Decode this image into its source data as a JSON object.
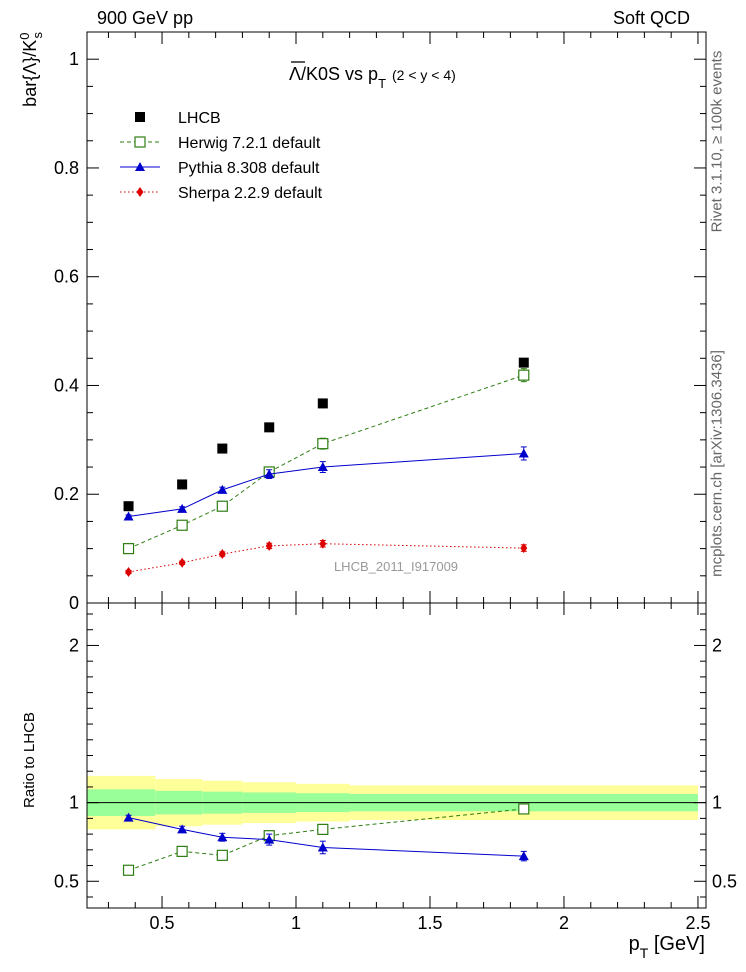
{
  "header": {
    "left": "900 GeV pp",
    "right": "Soft QCD"
  },
  "side": {
    "rivet": "Rivet 3.1.10, ≥ 100k events",
    "mcplots": "mcplots.cern.ch [arXiv:1306.3436]"
  },
  "title": {
    "main": "Λ/K0S vs p",
    "sub": "T",
    "range": "(2 < y < 4)"
  },
  "analysis_label": "LHCB_2011_I917009",
  "colors": {
    "herwig": "#2e7d12",
    "pythia": "#0000cc",
    "sherpa": "#dd0000",
    "data": "#000000",
    "band_inner": "#99ff99",
    "band_outer": "#ffff99"
  },
  "chart_data": [
    {
      "type": "scatter",
      "panel": "main",
      "title": "Λ/K0S vs pT (2 < y < 4)",
      "xlabel": "pT [GeV]",
      "ylabel": "bar{Λ}/K0s",
      "xlim": [
        0.22,
        2.53
      ],
      "ylim": [
        0,
        1.05
      ],
      "x_ticks": [
        0.5,
        1,
        1.5,
        2,
        2.5
      ],
      "y_ticks": [
        0,
        0.2,
        0.4,
        0.6,
        0.8,
        1
      ],
      "y_tick_labels": [
        "0",
        "0.2",
        "0.4",
        "0.6",
        "0.8",
        "1"
      ],
      "legend_position": "top-left",
      "series": [
        {
          "name": "LHCB",
          "style": "square-filled",
          "x": [
            0.375,
            0.575,
            0.725,
            0.9,
            1.1,
            1.85
          ],
          "values": [
            0.178,
            0.218,
            0.284,
            0.323,
            0.367,
            0.442
          ],
          "errors": [
            0.004,
            0.004,
            0.004,
            0.004,
            0.005,
            0.006
          ]
        },
        {
          "name": "Herwig 7.2.1 default",
          "style": "square-open-dashed",
          "x": [
            0.375,
            0.575,
            0.725,
            0.9,
            1.1,
            1.85
          ],
          "values": [
            0.1,
            0.143,
            0.178,
            0.241,
            0.293,
            0.419
          ],
          "errors": [
            0.004,
            0.004,
            0.005,
            0.007,
            0.01,
            0.012
          ]
        },
        {
          "name": "Pythia 8.308 default",
          "style": "triangle-solid",
          "x": [
            0.375,
            0.575,
            0.725,
            0.9,
            1.1,
            1.85
          ],
          "values": [
            0.159,
            0.173,
            0.208,
            0.237,
            0.25,
            0.275
          ],
          "errors": [
            0.003,
            0.004,
            0.005,
            0.008,
            0.01,
            0.012
          ]
        },
        {
          "name": "Sherpa 2.2.9 default",
          "style": "diamond-dotted",
          "x": [
            0.375,
            0.575,
            0.725,
            0.9,
            1.1,
            1.85
          ],
          "values": [
            0.057,
            0.074,
            0.09,
            0.105,
            0.109,
            0.101
          ],
          "errors": [
            0.003,
            0.003,
            0.004,
            0.005,
            0.006,
            0.006
          ]
        }
      ]
    },
    {
      "type": "scatter",
      "panel": "ratio",
      "xlabel": "pT [GeV]",
      "ylabel": "Ratio to LHCB",
      "xlim": [
        0.22,
        2.53
      ],
      "ylim": [
        0.33,
        2.27
      ],
      "x_ticks": [
        0.5,
        1,
        1.5,
        2,
        2.5
      ],
      "x_tick_labels": [
        "0.5",
        "1",
        "1.5",
        "2",
        "2.5"
      ],
      "y_ticks": [
        0.5,
        1,
        2
      ],
      "y_tick_labels": [
        "0.5",
        "1",
        "2"
      ],
      "bands": [
        {
          "x": [
            0.22,
            0.475,
            0.65,
            0.8,
            1.0,
            1.2,
            2.5
          ],
          "inner": [
            0.085,
            0.075,
            0.07,
            0.065,
            0.06,
            0.055
          ],
          "outer": [
            0.17,
            0.15,
            0.14,
            0.13,
            0.12,
            0.11
          ]
        }
      ],
      "series": [
        {
          "name": "Herwig 7.2.1 default",
          "x": [
            0.375,
            0.575,
            0.725,
            0.9,
            1.1,
            1.85
          ],
          "values": [
            0.57,
            0.69,
            0.665,
            0.79,
            0.83,
            0.96
          ],
          "errors": [
            0.02,
            0.02,
            0.025,
            0.025,
            0.03,
            0.025
          ]
        },
        {
          "name": "Pythia 8.308 default",
          "x": [
            0.375,
            0.575,
            0.725,
            0.9,
            1.1,
            1.85
          ],
          "values": [
            0.905,
            0.83,
            0.78,
            0.765,
            0.715,
            0.66
          ],
          "errors": [
            0.015,
            0.02,
            0.025,
            0.035,
            0.04,
            0.03
          ]
        }
      ]
    }
  ]
}
